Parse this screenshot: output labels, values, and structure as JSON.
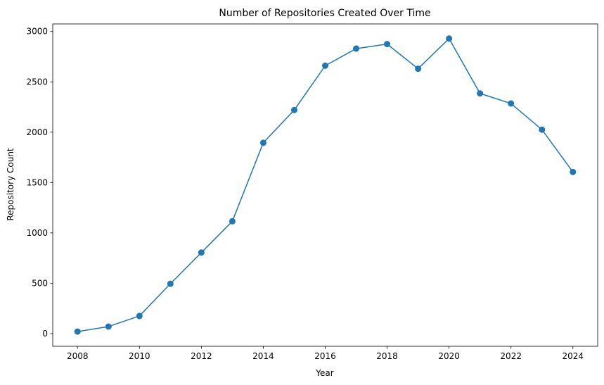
{
  "chart_data": {
    "type": "line",
    "title": "Number of Repositories Created Over Time",
    "xlabel": "Year",
    "ylabel": "Repository Count",
    "x": [
      2008,
      2009,
      2010,
      2011,
      2012,
      2013,
      2014,
      2015,
      2016,
      2017,
      2018,
      2019,
      2020,
      2021,
      2022,
      2023,
      2024
    ],
    "series": [
      {
        "values": [
          20,
          70,
          175,
          495,
          805,
          1115,
          1895,
          2220,
          2660,
          2830,
          2875,
          2630,
          2930,
          2385,
          2285,
          2025,
          1605
        ],
        "color": "#1f77b4",
        "marker": "circle"
      }
    ],
    "xticks": [
      "2008",
      "2010",
      "2012",
      "2014",
      "2016",
      "2018",
      "2020",
      "2022",
      "2024"
    ],
    "yticks": [
      "0",
      "500",
      "1000",
      "1500",
      "2000",
      "2500",
      "3000"
    ],
    "xlim": [
      2007.2,
      2024.8
    ],
    "ylim": [
      -126,
      3075
    ],
    "grid": false,
    "legend": false
  }
}
